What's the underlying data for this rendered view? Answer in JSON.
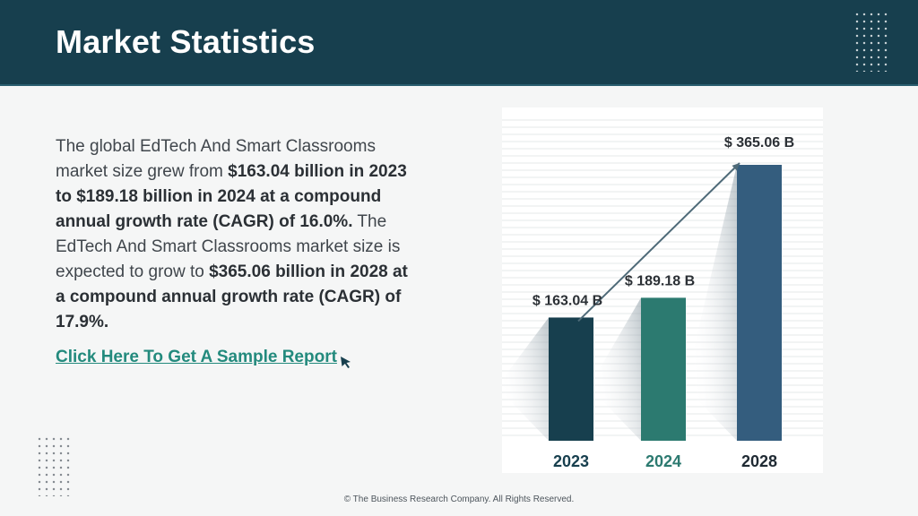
{
  "header": {
    "title": "Market Statistics"
  },
  "body": {
    "segments": [
      {
        "text": "The global EdTech And Smart Classrooms market size grew from ",
        "bold": false
      },
      {
        "text": "$163.04 billion in 2023 to $189.18 billion in 2024 at a compound annual growth rate (CAGR) of 16.0%.",
        "bold": true
      },
      {
        "text": " The EdTech And Smart Classrooms market size is expected to grow to ",
        "bold": false
      },
      {
        "text": "$365.06 billion in 2028 at a compound annual growth rate (CAGR) of 17.9%.",
        "bold": true
      }
    ]
  },
  "cta": {
    "label": "Click Here To Get A Sample Report"
  },
  "footer": {
    "text": "© The Business Research Company. All Rights Reserved."
  },
  "chart_data": {
    "type": "bar",
    "categories": [
      "2023",
      "2024",
      "2028"
    ],
    "values": [
      163.04,
      189.18,
      365.06
    ],
    "value_labels": [
      "$ 163.04 B",
      "$ 189.18 B",
      "$ 365.06 B"
    ],
    "bar_colors": [
      "#173f4e",
      "#2c7a70",
      "#345d7e"
    ],
    "category_label_colors": [
      "#173f4e",
      "#2c7a70",
      "#1f2a33"
    ],
    "trend_arrow": true,
    "grid": "horizontal",
    "title": "",
    "xlabel": "",
    "ylabel": ""
  }
}
